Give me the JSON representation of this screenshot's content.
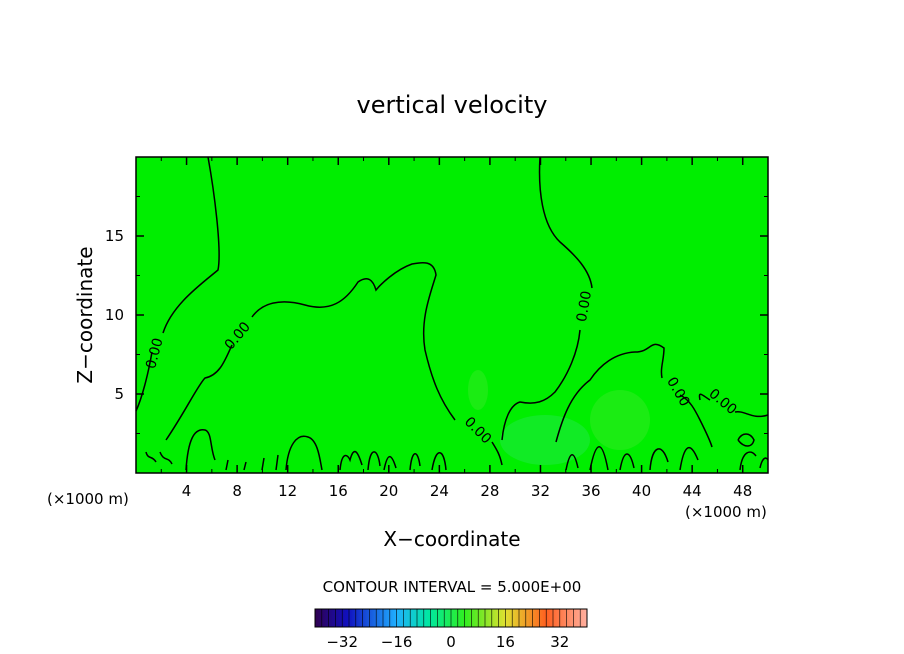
{
  "chart_data": {
    "type": "contour",
    "title": "vertical velocity",
    "xlabel": "X−coordinate",
    "ylabel": "Z−coordinate",
    "x_unit_left": "(×1000 m)",
    "x_unit_right": "(×1000 m)",
    "xlim": [
      0,
      50
    ],
    "ylim": [
      0,
      20
    ],
    "x_ticks": [
      "4",
      "8",
      "12",
      "16",
      "20",
      "24",
      "28",
      "32",
      "36",
      "40",
      "44",
      "48"
    ],
    "x_tick_values": [
      4,
      8,
      12,
      16,
      20,
      24,
      28,
      32,
      36,
      40,
      44,
      48
    ],
    "y_ticks": [
      "5",
      "10",
      "15"
    ],
    "y_tick_values": [
      5,
      10,
      15
    ],
    "contour_labels": [
      {
        "text": "0.00",
        "x": 1.8,
        "y": 7.5
      },
      {
        "text": "0.00",
        "x": 8.3,
        "y": 8.5
      },
      {
        "text": "0.00",
        "x": 35.8,
        "y": 10.5
      },
      {
        "text": "0.00",
        "x": 26.8,
        "y": 2.5
      },
      {
        "text": "0.00",
        "x": 42.6,
        "y": 5.0
      },
      {
        "text": "0.00",
        "x": 46.2,
        "y": 4.3
      }
    ],
    "contour_interval_text": "CONTOUR INTERVAL = 5.000E+00",
    "colorbar": {
      "range": [
        -40,
        40
      ],
      "ticks": [
        "−32",
        "−16",
        "0",
        "16",
        "32"
      ],
      "tick_values": [
        -32,
        -16,
        0,
        16,
        32
      ]
    },
    "background_color": "#00ee00"
  }
}
